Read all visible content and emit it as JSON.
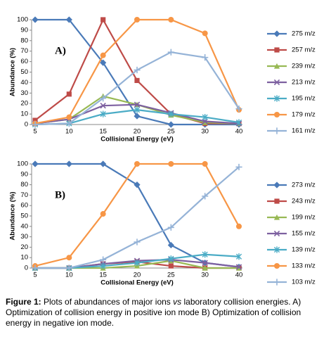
{
  "chart_data": [
    {
      "type": "line",
      "annotation": "A)",
      "ylabel": "Abundance (%)",
      "xlabel": "Collisional Energy (eV)",
      "categories": [
        "5",
        "10",
        "15",
        "20",
        "25",
        "30",
        "40"
      ],
      "ylim": [
        0,
        100
      ],
      "yticks": [
        0,
        10,
        20,
        30,
        40,
        50,
        60,
        70,
        80,
        90,
        100
      ],
      "grid": false,
      "legend": "right",
      "series": [
        {
          "name": "275 m/z",
          "color": "#4a7ab8",
          "marker": "diamond",
          "values": [
            100,
            100,
            59,
            8,
            0,
            0,
            0
          ]
        },
        {
          "name": "257 m/z",
          "color": "#be4b48",
          "marker": "square",
          "values": [
            4,
            29,
            100,
            42,
            10,
            1,
            1
          ]
        },
        {
          "name": "239 m/z",
          "color": "#98b954",
          "marker": "triangle",
          "values": [
            1,
            5,
            27,
            19,
            9,
            2,
            1
          ]
        },
        {
          "name": "213 m/z",
          "color": "#7d60a0",
          "marker": "x",
          "values": [
            1,
            5,
            18,
            19,
            11,
            3,
            1
          ]
        },
        {
          "name": "195 m/z",
          "color": "#4bacc6",
          "marker": "star",
          "values": [
            0,
            1,
            10,
            14,
            10,
            7,
            2
          ]
        },
        {
          "name": "179 m/z",
          "color": "#f79646",
          "marker": "circle",
          "values": [
            1,
            7,
            66,
            100,
            100,
            87,
            14
          ]
        },
        {
          "name": "161 m/z",
          "color": "#95b3d7",
          "marker": "plus",
          "values": [
            0,
            1,
            25,
            52,
            69,
            64,
            15
          ]
        }
      ]
    },
    {
      "type": "line",
      "annotation": "B)",
      "ylabel": "Abundance (%)",
      "xlabel": "Collisional Energy (eV)",
      "categories": [
        "5",
        "10",
        "15",
        "20",
        "25",
        "30",
        "40"
      ],
      "ylim": [
        0,
        100
      ],
      "yticks": [
        0,
        10,
        20,
        30,
        40,
        50,
        60,
        70,
        80,
        90,
        100
      ],
      "grid": false,
      "legend": "right",
      "series": [
        {
          "name": "273 m/z",
          "color": "#4a7ab8",
          "marker": "diamond",
          "values": [
            100,
            100,
            100,
            80,
            22,
            5,
            1
          ]
        },
        {
          "name": "243 m/z",
          "color": "#be4b48",
          "marker": "square",
          "values": [
            0,
            0,
            4,
            6,
            2,
            0,
            0
          ]
        },
        {
          "name": "199 m/z",
          "color": "#98b954",
          "marker": "triangle",
          "values": [
            0,
            0,
            0,
            2,
            7,
            0,
            0
          ]
        },
        {
          "name": "155 m/z",
          "color": "#7d60a0",
          "marker": "x",
          "values": [
            0,
            0,
            4,
            7,
            8,
            5,
            1
          ]
        },
        {
          "name": "139 m/z",
          "color": "#4bacc6",
          "marker": "star",
          "values": [
            0,
            0,
            2,
            5,
            9,
            13,
            11
          ]
        },
        {
          "name": "133 m/z",
          "color": "#f79646",
          "marker": "circle",
          "values": [
            2,
            10,
            52,
            100,
            100,
            100,
            40
          ]
        },
        {
          "name": "103 m/z",
          "color": "#95b3d7",
          "marker": "plus",
          "values": [
            0,
            0,
            8,
            25,
            39,
            69,
            97
          ]
        }
      ]
    }
  ],
  "caption": {
    "label": "Figure 1:",
    "text_before": "Plots of abundances of major ions",
    "emphasis": "vs",
    "text_after": "laboratory collision energies. A) Optimization of collision energy in positive ion mode B) Optimization of collision energy in negative ion mode."
  }
}
